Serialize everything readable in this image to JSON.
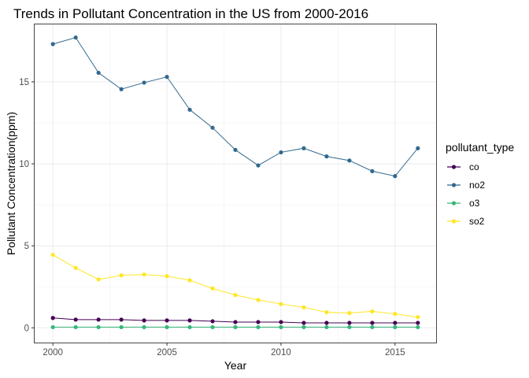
{
  "chart_data": {
    "type": "line",
    "title": "Trends in Pollutant Concentration in the US from 2000-2016",
    "xlabel": "Year",
    "ylabel": "Pollutant Concentration(ppm)",
    "x": [
      2000,
      2001,
      2002,
      2003,
      2004,
      2005,
      2006,
      2007,
      2008,
      2009,
      2010,
      2011,
      2012,
      2013,
      2014,
      2015,
      2016
    ],
    "xlim": [
      1999.2,
      2016.8
    ],
    "ylim": [
      -0.9,
      18.5
    ],
    "xticks": [
      2000,
      2005,
      2010,
      2015
    ],
    "yticks": [
      0,
      5,
      10,
      15
    ],
    "xtick_labels": [
      "2000",
      "2005",
      "2010",
      "2015"
    ],
    "ytick_labels": [
      "0",
      "5",
      "10",
      "15"
    ],
    "grid": true,
    "legend_title": "pollutant_type",
    "legend_position": "right",
    "series": [
      {
        "name": "co",
        "color": "#440154",
        "values": [
          0.6,
          0.5,
          0.5,
          0.5,
          0.45,
          0.45,
          0.45,
          0.4,
          0.35,
          0.35,
          0.35,
          0.3,
          0.3,
          0.3,
          0.3,
          0.3,
          0.3
        ]
      },
      {
        "name": "no2",
        "color": "#31688e",
        "values": [
          17.3,
          17.7,
          15.55,
          14.55,
          14.95,
          15.3,
          13.3,
          12.2,
          10.85,
          9.9,
          10.7,
          10.95,
          10.45,
          10.2,
          9.55,
          9.25,
          10.95
        ]
      },
      {
        "name": "o3",
        "color": "#35b779",
        "values": [
          0.04,
          0.04,
          0.04,
          0.04,
          0.04,
          0.04,
          0.04,
          0.04,
          0.04,
          0.04,
          0.04,
          0.04,
          0.04,
          0.04,
          0.04,
          0.04,
          0.04
        ]
      },
      {
        "name": "so2",
        "color": "#fde725",
        "values": [
          4.45,
          3.65,
          2.95,
          3.2,
          3.25,
          3.15,
          2.9,
          2.4,
          2.0,
          1.7,
          1.45,
          1.25,
          0.95,
          0.9,
          1.0,
          0.85,
          0.65
        ]
      }
    ]
  }
}
